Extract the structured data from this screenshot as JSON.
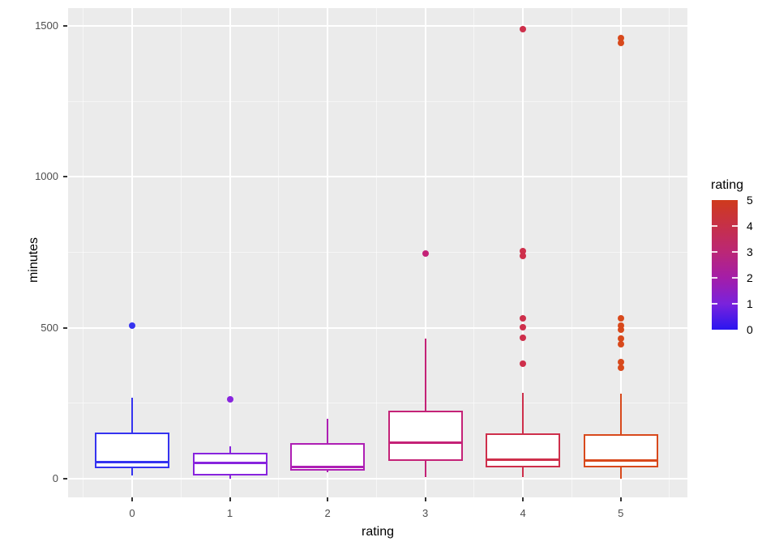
{
  "chart_data": {
    "type": "boxplot",
    "title": "",
    "xlabel": "rating",
    "ylabel": "minutes",
    "x_ticks": [
      0,
      1,
      2,
      3,
      4,
      5
    ],
    "y_ticks": [
      0,
      500,
      1000,
      1500
    ],
    "y_minor_ticks": [
      250,
      750,
      1250
    ],
    "ylim": [
      -62,
      1560
    ],
    "panel_background": "#EBEBEB",
    "grid_color": "#FFFFFF",
    "tick_label_color": "#4D4D4D",
    "boxes": [
      {
        "rating": 0,
        "color": "#3533F0",
        "whisker_low": 12,
        "q1": 36,
        "median": 56,
        "q3": 153,
        "whisker_high": 269,
        "outliers": [
          506
        ]
      },
      {
        "rating": 1,
        "color": "#8824DE",
        "whisker_low": 1,
        "q1": 12,
        "median": 53,
        "q3": 85,
        "whisker_high": 107,
        "outliers": [
          262
        ]
      },
      {
        "rating": 2,
        "color": "#AE1FB4",
        "whisker_low": 21,
        "q1": 27,
        "median": 38,
        "q3": 119,
        "whisker_high": 199,
        "outliers": []
      },
      {
        "rating": 3,
        "color": "#C42277",
        "whisker_low": 5,
        "q1": 59,
        "median": 119,
        "q3": 226,
        "whisker_high": 465,
        "outliers": [
          745
        ]
      },
      {
        "rating": 4,
        "color": "#CE2F4B",
        "whisker_low": 5,
        "q1": 38,
        "median": 64,
        "q3": 150,
        "whisker_high": 285,
        "outliers": [
          1488,
          753,
          737,
          532,
          501,
          468,
          381
        ]
      },
      {
        "rating": 5,
        "color": "#D8491C",
        "whisker_low": 0,
        "q1": 38,
        "median": 60,
        "q3": 148,
        "whisker_high": 283,
        "outliers": [
          1461,
          1444,
          532,
          506,
          495,
          463,
          445,
          387,
          368
        ]
      }
    ],
    "legend": {
      "title": "rating",
      "tick_labels": [
        5,
        4,
        3,
        2,
        1,
        0
      ],
      "range": [
        0,
        5
      ],
      "gradient_stops": [
        {
          "value": 0,
          "color": "#2A16F0"
        },
        {
          "value": 1,
          "color": "#7A22DC"
        },
        {
          "value": 2,
          "color": "#A41DA8"
        },
        {
          "value": 3,
          "color": "#BB2776"
        },
        {
          "value": 4,
          "color": "#C63048"
        },
        {
          "value": 5,
          "color": "#CF3A1C"
        }
      ]
    }
  }
}
